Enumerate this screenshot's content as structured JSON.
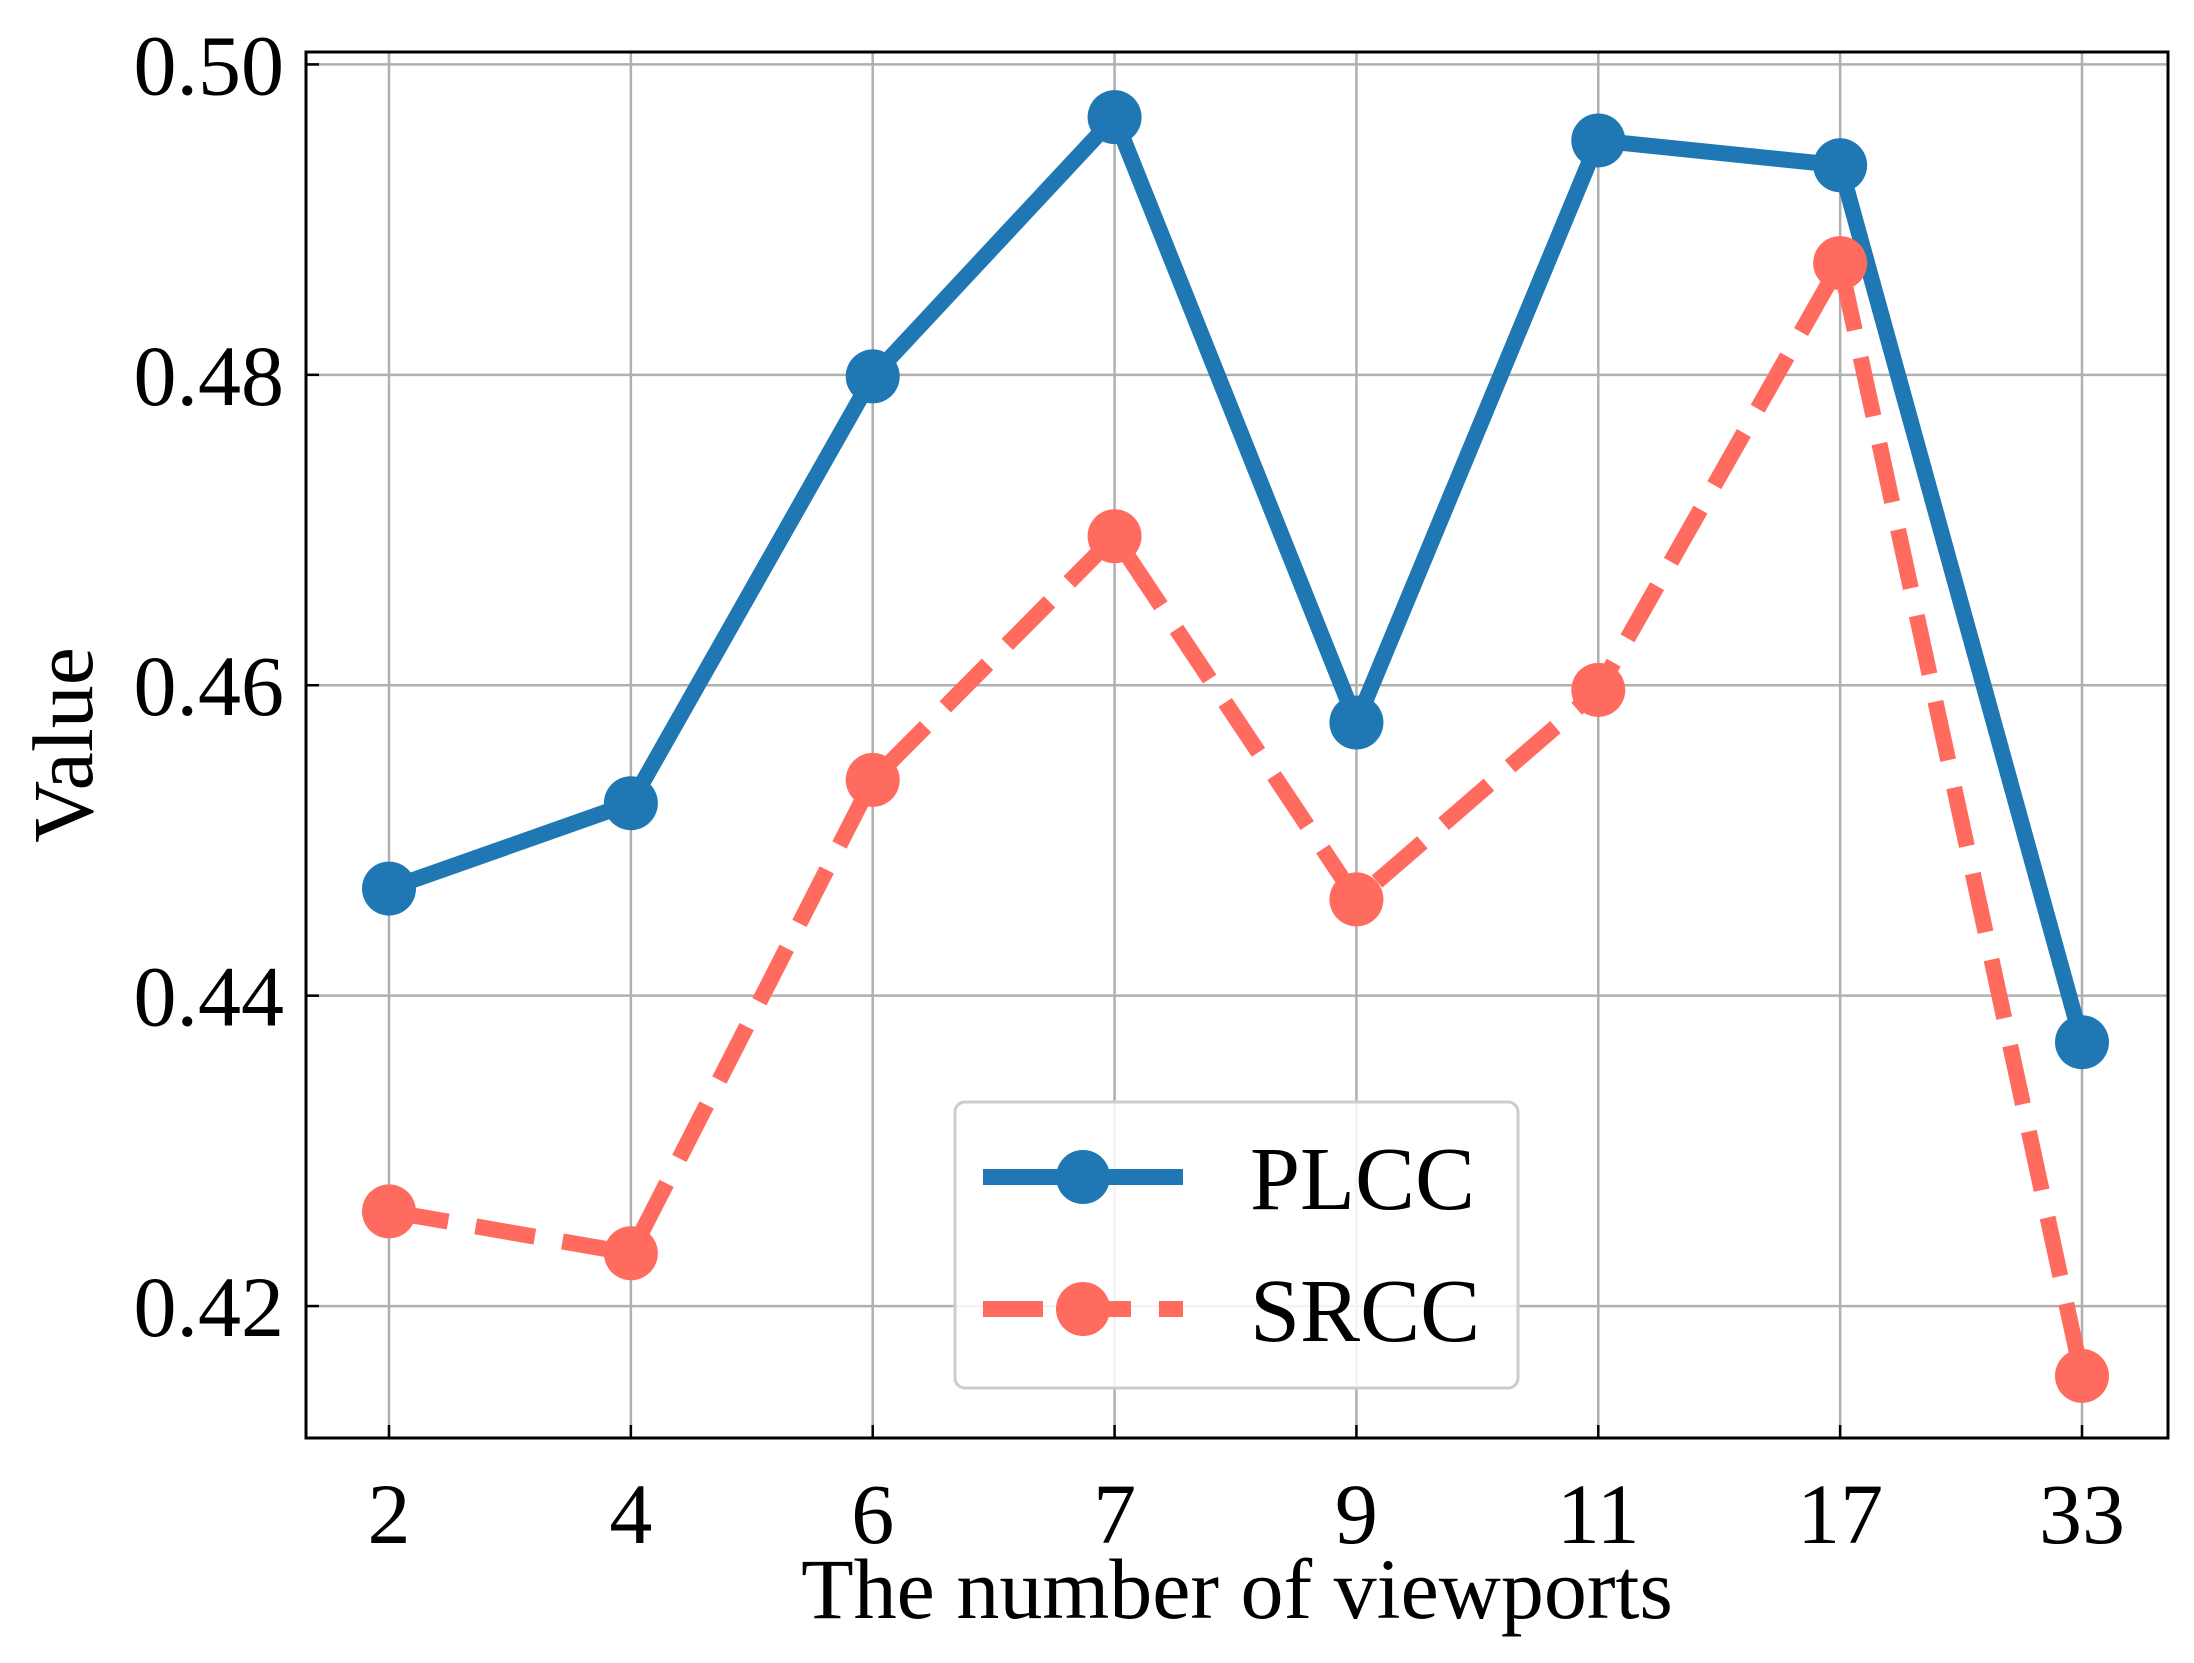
{
  "chart_data": {
    "type": "line",
    "categories": [
      "2",
      "4",
      "6",
      "7",
      "9",
      "11",
      "17",
      "33"
    ],
    "series": [
      {
        "name": "PLCC",
        "values": [
          0.4469,
          0.4524,
          0.4799,
          0.4966,
          0.4576,
          0.4951,
          0.4935,
          0.437
        ],
        "color": "#1f77b4",
        "style": "solid",
        "marker": "circle"
      },
      {
        "name": "SRCC",
        "values": [
          0.4261,
          0.4234,
          0.4539,
          0.4696,
          0.4462,
          0.4597,
          0.4872,
          0.4155
        ],
        "color": "#ff6b5e",
        "style": "dashed",
        "marker": "circle"
      }
    ],
    "title": "",
    "xlabel": "The number of viewports",
    "ylabel": "Value",
    "ylim": [
      0.4115,
      0.5008
    ],
    "yticks": [
      "0.42",
      "0.44",
      "0.46",
      "0.48",
      "0.50"
    ],
    "grid": true,
    "legend_position": "lower-center"
  }
}
